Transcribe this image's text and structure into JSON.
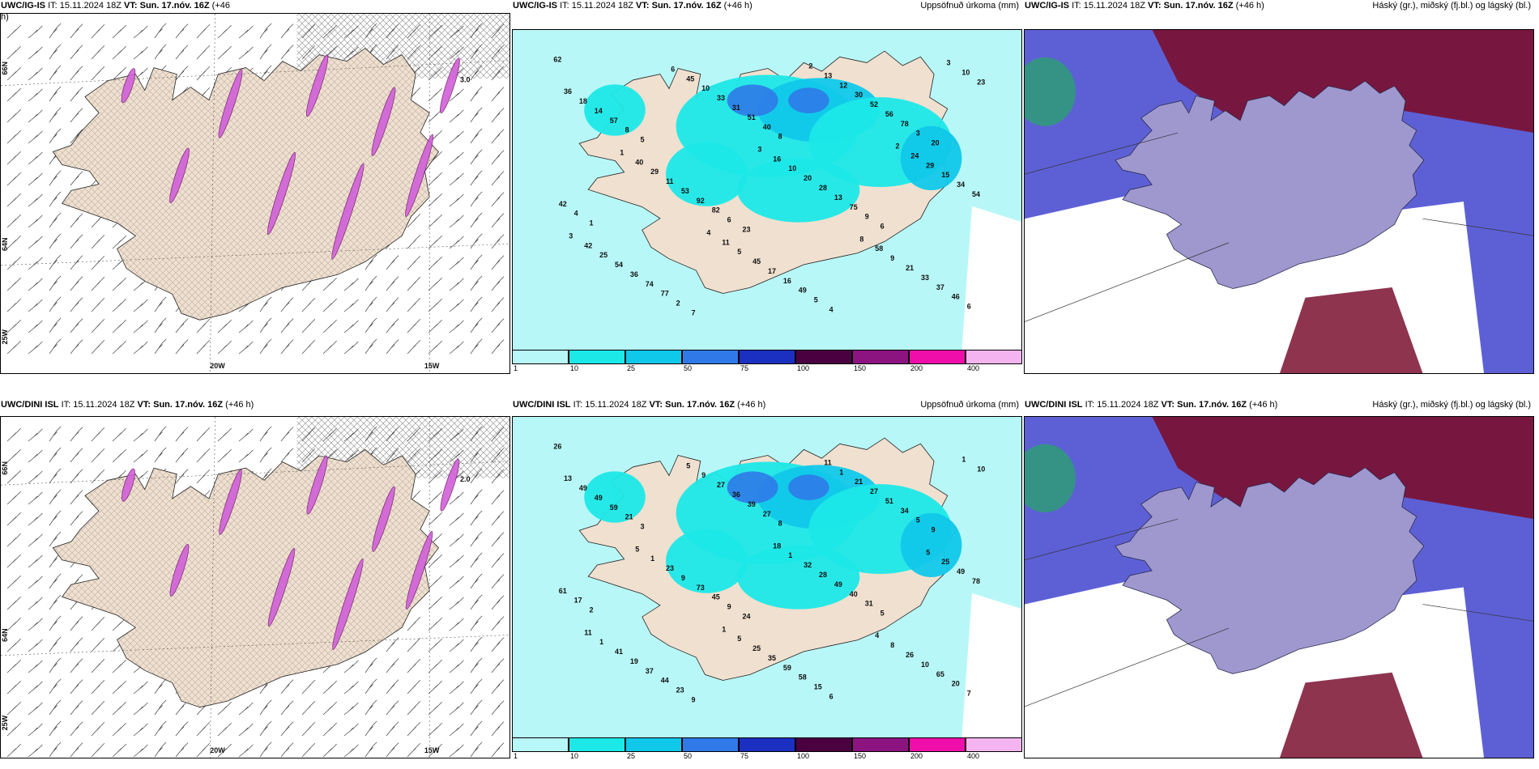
{
  "colors": {
    "land": "#f0e0cf",
    "precip_legend": [
      "#b8f7f7",
      "#1ce8e8",
      "#10c8ea",
      "#2f7ae8",
      "#1b2fc0",
      "#4a0040",
      "#8c1480",
      "#f00eaa",
      "#f4b4f0"
    ],
    "cloud_high": "#7a1030",
    "cloud_mid": "#4b4fd0",
    "cloud_low": "#2aa070",
    "snow": "#d060d8"
  },
  "rows": [
    {
      "panels": [
        {
          "title_model": "UWC/IG-IS",
          "title_it": "IT: 15.11.2024 18Z",
          "title_vt": "VT: Sun. 17.nóv. 16Z",
          "title_lead": "(+46",
          "title_lead2": "h)",
          "right": ""
        },
        {
          "title_model": "UWC/IG-IS",
          "title_it": "IT: 15.11.2024 18Z",
          "title_vt": "VT: Sun. 17.nóv. 16Z",
          "title_lead": "(+46 h)",
          "right": "Uppsöfnuð úrkoma (mm)"
        },
        {
          "title_model": "UWC/IG-IS",
          "title_it": "IT: 15.11.2024 18Z",
          "title_vt": "VT: Sun. 17.nóv. 16Z",
          "title_lead": "(+46 h)",
          "right": "Háský (gr.), miðský (fj.bl.) og lágský (bl.)"
        }
      ],
      "values": [
        "62",
        "23",
        "20",
        "7",
        "6",
        "5",
        "4",
        "1",
        "8",
        "6",
        "6",
        "3",
        "2",
        "9",
        "8",
        "5",
        "4",
        "40",
        "46",
        "82",
        "78",
        "77",
        "75",
        "57",
        "49",
        "42",
        "51",
        "37",
        "92",
        "56",
        "74",
        "13",
        "14",
        "16",
        "54",
        "31",
        "33",
        "53",
        "52",
        "36",
        "28",
        "18",
        "17",
        "34",
        "33",
        "21",
        "11",
        "30",
        "54",
        "20",
        "36",
        "45",
        "15",
        "10",
        "9",
        "29",
        "12",
        "25",
        "10",
        "23",
        "5",
        "29",
        "45",
        "58",
        "40",
        "13",
        "42",
        "16",
        "10",
        "11",
        "24",
        "6",
        "8",
        "1",
        "2",
        "3",
        "3",
        "3",
        "4",
        "2"
      ],
      "snow_value": "3.0"
    },
    {
      "panels": [
        {
          "title_model": "UWC/DINI ISL",
          "title_it": "IT: 15.11.2024 18Z",
          "title_vt": "VT: Sun. 17.nóv. 16Z",
          "title_lead": "(+46 h)",
          "right": ""
        },
        {
          "title_model": "UWC/DINI ISL",
          "title_it": "IT: 15.11.2024 18Z",
          "title_vt": "VT: Sun. 17.nóv. 16Z",
          "title_lead": "(+46 h)",
          "right": "Uppsöfnuð úrkoma (mm)"
        },
        {
          "title_model": "UWC/DINI ISL",
          "title_it": "IT: 15.11.2024 18Z",
          "title_vt": "VT: Sun. 17.nóv. 16Z",
          "title_lead": "(+46 h)",
          "right": "Háský (gr.), miðský (fj.bl.) og lágský (bl.)"
        }
      ],
      "values": [
        "26",
        "24",
        "9",
        "9",
        "5",
        "3",
        "6",
        "2",
        "8",
        "7",
        "9",
        "5",
        "23",
        "31",
        "21",
        "15",
        "17",
        "27",
        "20",
        "45",
        "34",
        "44",
        "40",
        "59",
        "58",
        "61",
        "39",
        "65",
        "73",
        "51",
        "37",
        "49",
        "49",
        "59",
        "78",
        "36",
        "10",
        "9",
        "27",
        "19",
        "28",
        "49",
        "35",
        "49",
        "27",
        "26",
        "23",
        "21",
        "41",
        "32",
        "13",
        "25",
        "25",
        "9",
        "8",
        "1",
        "1",
        "1",
        "1",
        "10",
        "5",
        "5",
        "5",
        "4",
        "5",
        "11",
        "11",
        "18",
        "1",
        "1"
      ],
      "snow_value": "2.0"
    }
  ],
  "axes": {
    "lon_labels": [
      "20W",
      "15W"
    ],
    "lat_labels": [
      "66N",
      "64N",
      "25W"
    ]
  },
  "legend": {
    "ticks": [
      "1",
      "10",
      "25",
      "50",
      "75",
      "100",
      "150",
      "200",
      "400"
    ]
  }
}
